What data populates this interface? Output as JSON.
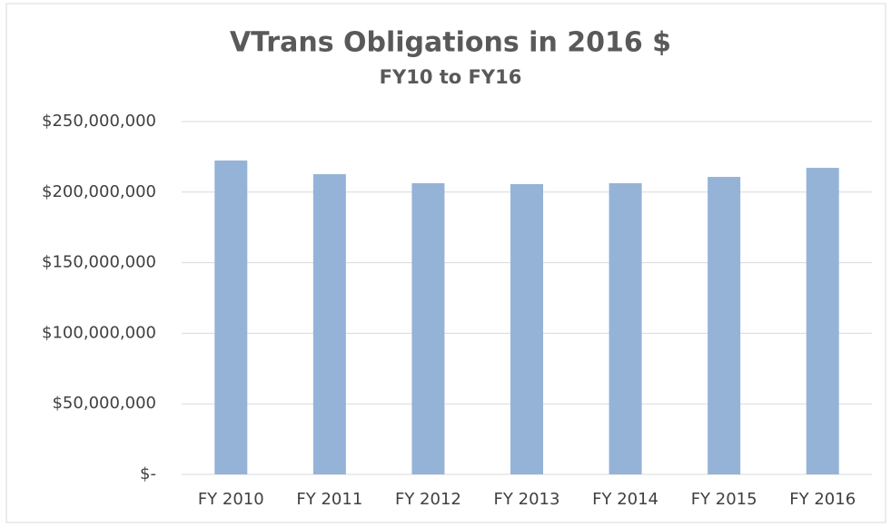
{
  "chart_data": {
    "type": "bar",
    "title": "VTrans Obligations in 2016 $",
    "subtitle": "FY10 to FY16",
    "categories": [
      "FY 2010",
      "FY 2011",
      "FY 2012",
      "FY 2013",
      "FY 2014",
      "FY 2015",
      "FY 2016"
    ],
    "values": [
      222400000,
      212700000,
      206300000,
      205700000,
      206300000,
      210800000,
      217200000
    ],
    "color": "#95b3d7",
    "ylim": [
      0,
      250000000
    ],
    "yticks": [
      {
        "value": 0,
        "label": "$-"
      },
      {
        "value": 50000000,
        "label": "$50,000,000"
      },
      {
        "value": 100000000,
        "label": "$100,000,000"
      },
      {
        "value": 150000000,
        "label": "$150,000,000"
      },
      {
        "value": 200000000,
        "label": "$200,000,000"
      },
      {
        "value": 250000000,
        "label": "$250,000,000"
      }
    ],
    "grid": true
  }
}
